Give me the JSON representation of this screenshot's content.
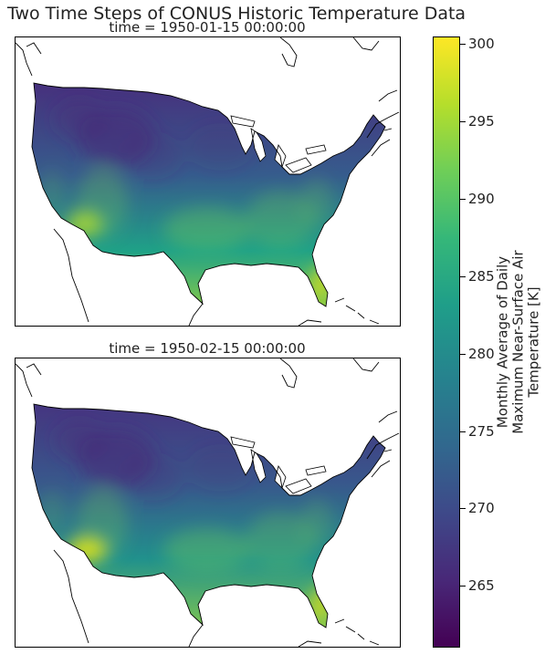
{
  "chart_data": {
    "type": "heatmap",
    "title": "Two Time Steps of CONUS Historic Temperature Data",
    "panels": [
      {
        "title": "time = 1950-01-15 00:00:00",
        "scale": 0.0
      },
      {
        "title": "time = 1950-02-15 00:00:00",
        "scale": 1.0
      }
    ],
    "colorbar": {
      "label_lines": [
        "Monthly Average of Daily",
        "Maximum Near-Surface Air",
        "Temperature [K]"
      ],
      "range": [
        261,
        300.5
      ],
      "ticks": [
        265,
        270,
        275,
        280,
        285,
        290,
        295,
        300
      ],
      "colormap": "viridis"
    }
  }
}
